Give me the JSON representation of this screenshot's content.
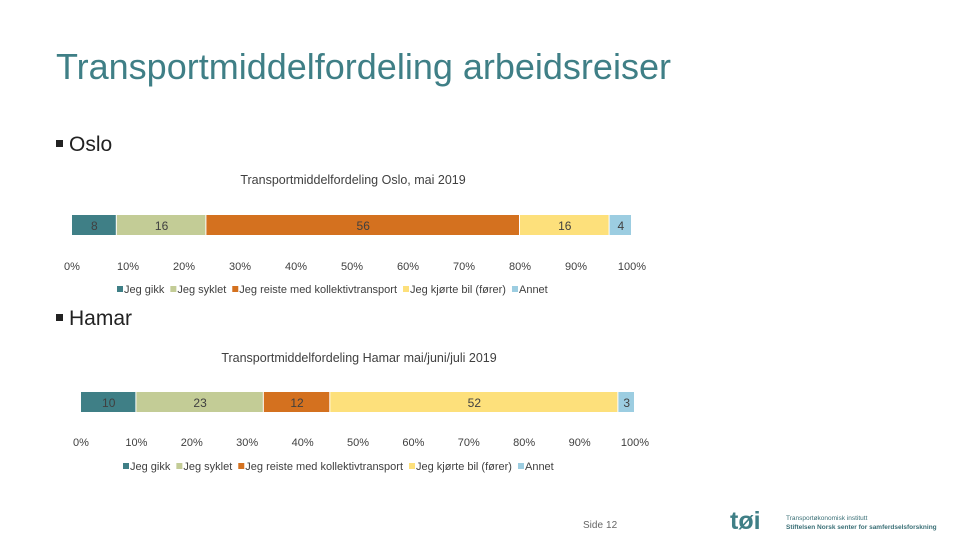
{
  "page": {
    "title": "Transportmiddelfordeling arbeidsreiser",
    "bullet_oslo": "Oslo",
    "bullet_hamar": "Hamar",
    "page_label": "Side",
    "page_number": "12",
    "logo_mark": "tøi",
    "logo_line1": "Transportøkonomisk institutt",
    "logo_line2": "Stiftelsen Norsk senter for samferdselsforskning"
  },
  "colors": {
    "Jeg gikk": "#3f7f86",
    "Jeg syklet": "#c3cc96",
    "Jeg reiste med kollektivtransport": "#d4711f",
    "Jeg kjørte bil (fører)": "#fde07b",
    "Annet": "#9ccde1"
  },
  "chart_data": [
    {
      "type": "bar",
      "orientation": "horizontal-stacked",
      "title": "Transportmiddelfordeling Oslo, mai 2019",
      "series": [
        {
          "name": "Jeg gikk",
          "values": [
            8
          ]
        },
        {
          "name": "Jeg syklet",
          "values": [
            16
          ]
        },
        {
          "name": "Jeg reiste med kollektivtransport",
          "values": [
            56
          ]
        },
        {
          "name": "Jeg kjørte bil (fører)",
          "values": [
            16
          ]
        },
        {
          "name": "Annet",
          "values": [
            4
          ]
        }
      ],
      "xlim": [
        0,
        100
      ],
      "xticks": [
        "0%",
        "10%",
        "20%",
        "30%",
        "40%",
        "50%",
        "60%",
        "70%",
        "80%",
        "90%",
        "100%"
      ],
      "legend": "bottom"
    },
    {
      "type": "bar",
      "orientation": "horizontal-stacked",
      "title": "Transportmiddelfordeling Hamar mai/juni/juli 2019",
      "series": [
        {
          "name": "Jeg gikk",
          "values": [
            10
          ]
        },
        {
          "name": "Jeg syklet",
          "values": [
            23
          ]
        },
        {
          "name": "Jeg reiste med kollektivtransport",
          "values": [
            12
          ]
        },
        {
          "name": "Jeg kjørte bil (fører)",
          "values": [
            52
          ]
        },
        {
          "name": "Annet",
          "values": [
            3
          ]
        }
      ],
      "xlim": [
        0,
        100
      ],
      "xticks": [
        "0%",
        "10%",
        "20%",
        "30%",
        "40%",
        "50%",
        "60%",
        "70%",
        "80%",
        "90%",
        "100%"
      ],
      "legend": "bottom"
    }
  ]
}
